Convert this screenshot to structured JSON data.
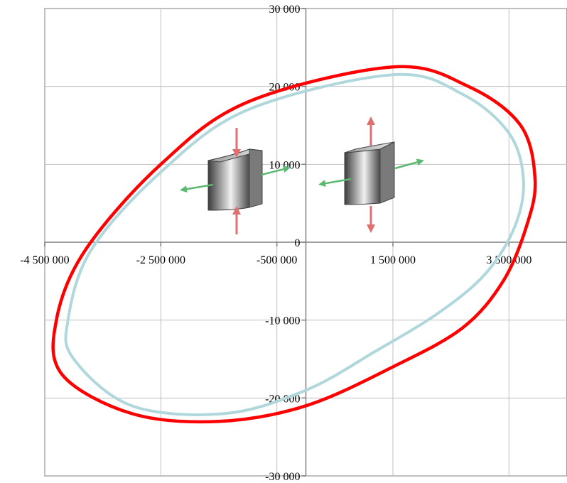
{
  "chart_data": {
    "type": "line",
    "title": "",
    "xlabel": "",
    "ylabel": "",
    "xlim": [
      -4500000,
      4500000
    ],
    "ylim": [
      -30000,
      30000
    ],
    "grid": true,
    "x_ticks": [
      {
        "value": -4500000,
        "label": "-4 500 000"
      },
      {
        "value": -2500000,
        "label": "-2 500 000"
      },
      {
        "value": -500000,
        "label": "-500 000"
      },
      {
        "value": 1500000,
        "label": "1 500 000"
      },
      {
        "value": 3500000,
        "label": "3 500 000"
      }
    ],
    "y_ticks": [
      {
        "value": 30000,
        "label": "30 000"
      },
      {
        "value": 20000,
        "label": "20 000"
      },
      {
        "value": 10000,
        "label": "10 000"
      },
      {
        "value": 0,
        "label": "0"
      },
      {
        "value": -10000,
        "label": "-10 000"
      },
      {
        "value": -20000,
        "label": "-20 000"
      },
      {
        "value": -30000,
        "label": "-30 000"
      }
    ],
    "series": [
      {
        "color": "#FF0000",
        "x": [
          1500000,
          2800000,
          3700000,
          3950000,
          3800000,
          3400000,
          2700000,
          1500000,
          0,
          -1500000,
          -3000000,
          -4200000,
          -4300000,
          -3800000,
          -2500000,
          -1000000,
          1500000
        ],
        "y": [
          22500,
          20000,
          15000,
          8000,
          2000,
          -5000,
          -11000,
          -16000,
          -21000,
          -23000,
          -22000,
          -17000,
          -10000,
          -1000,
          10000,
          18000,
          22500
        ]
      },
      {
        "color": "#B0D8DC",
        "x": [
          1500000,
          2700000,
          3500000,
          3750000,
          3600000,
          3100000,
          2300000,
          1200000,
          0,
          -1400000,
          -3000000,
          -4000000,
          -4100000,
          -3700000,
          -2500000,
          -1000000,
          1500000
        ],
        "y": [
          21500,
          19000,
          14000,
          8000,
          2000,
          -4000,
          -9000,
          -14000,
          -19000,
          -22000,
          -21000,
          -15000,
          -10000,
          -1000,
          9000,
          17000,
          21500
        ]
      }
    ],
    "insets": [
      {
        "icon": "compressed-specimen-icon",
        "arrow_colors": {
          "vertical": "#E07070",
          "horizontal": "#5BB870"
        }
      },
      {
        "icon": "tensioned-specimen-icon",
        "arrow_colors": {
          "vertical": "#E07070",
          "horizontal": "#5BB870"
        }
      }
    ]
  }
}
